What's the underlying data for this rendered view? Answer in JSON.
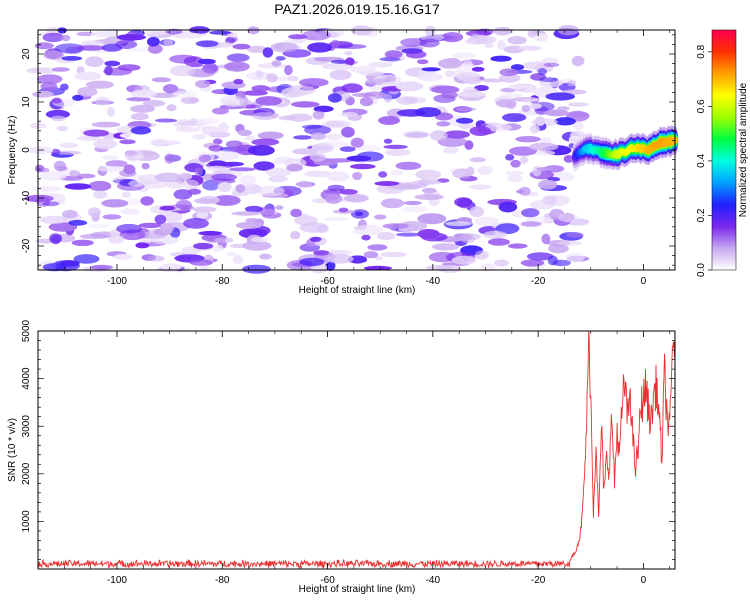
{
  "figure_title": "PAZ1.2026.019.15.16.G17",
  "chart_data": [
    {
      "type": "heatmap",
      "title": "PAZ1.2026.019.15.16.G17",
      "xlabel": "Height of straight line (km)",
      "ylabel": "Frequency (Hz)",
      "xlim": [
        -115,
        6
      ],
      "ylim": [
        -25,
        25
      ],
      "x_ticks": [
        -100,
        -80,
        -60,
        -40,
        -20,
        0
      ],
      "x_tick_labels": [
        "-100",
        "-80",
        "-60",
        "-40",
        "-20",
        "0"
      ],
      "y_ticks": [
        -20,
        -10,
        0,
        10,
        20
      ],
      "y_tick_labels": [
        "-20",
        "-10",
        "0",
        "10",
        "20"
      ],
      "colorbar": {
        "label": "Normalized spectral amplitude",
        "range": [
          0.0,
          0.88
        ],
        "ticks": [
          0.0,
          0.2,
          0.4,
          0.6,
          0.8
        ],
        "tick_labels": [
          "0.0",
          "0.2",
          "0.4",
          "0.6",
          "0.8"
        ],
        "colors": [
          "#ffffff",
          "#c8a8f0",
          "#7a28ee",
          "#2020ff",
          "#00a0ff",
          "#00ffe0",
          "#00ff40",
          "#a0ff00",
          "#ffff00",
          "#ffa000",
          "#ff3000",
          "#ff0050"
        ]
      },
      "noise_region": {
        "x_range": [
          -115,
          -12
        ],
        "freq_range": [
          -25,
          25
        ],
        "level_range": [
          0.02,
          0.22
        ]
      },
      "signal_trace": {
        "description_points": [
          {
            "x": -13,
            "freq": -1.5,
            "level": 0.2
          },
          {
            "x": -11,
            "freq": 0.5,
            "level": 0.35
          },
          {
            "x": -8,
            "freq": -0.5,
            "level": 0.45
          },
          {
            "x": -5,
            "freq": -1.0,
            "level": 0.6
          },
          {
            "x": -2,
            "freq": 0.5,
            "level": 0.65
          },
          {
            "x": 1,
            "freq": 0.0,
            "level": 0.7
          },
          {
            "x": 3,
            "freq": 1.5,
            "level": 0.72
          },
          {
            "x": 6,
            "freq": 2.0,
            "level": 0.7
          }
        ]
      },
      "grid": false
    },
    {
      "type": "line",
      "xlabel": "Height of straight line (km)",
      "ylabel": "SNR (10 * v/v)",
      "xlim": [
        -115,
        6
      ],
      "ylim": [
        0,
        5000
      ],
      "x_ticks": [
        -100,
        -80,
        -60,
        -40,
        -20,
        0
      ],
      "x_tick_labels": [
        "-100",
        "-80",
        "-60",
        "-40",
        "-20",
        "0"
      ],
      "y_ticks": [
        1000,
        2000,
        3000,
        4000,
        5000
      ],
      "y_tick_labels": [
        "1000",
        "2000",
        "3000",
        "4000",
        "5000"
      ],
      "line_color": "#e83030",
      "noise_floor": {
        "x_range": [
          -115,
          -14
        ],
        "mean": 110,
        "spread": 90
      },
      "series": [
        {
          "name": "SNR",
          "x": [
            -14,
            -13,
            -12,
            -11.5,
            -11,
            -10.7,
            -10.3,
            -10,
            -9.5,
            -9,
            -8.5,
            -8,
            -7.5,
            -7,
            -6.5,
            -6,
            -5.5,
            -5,
            -4.5,
            -4,
            -3.5,
            -3,
            -2.5,
            -2,
            -1.5,
            -1,
            -0.5,
            0,
            0.5,
            1,
            1.5,
            2,
            2.5,
            3,
            3.5,
            4,
            4.5,
            5,
            5.5,
            6
          ],
          "y": [
            180,
            350,
            700,
            1300,
            2400,
            3400,
            5000,
            3600,
            1200,
            2700,
            1000,
            3000,
            1600,
            2300,
            2100,
            3200,
            1800,
            2900,
            2400,
            3500,
            3900,
            3100,
            3800,
            2700,
            2100,
            2500,
            3400,
            3600,
            3800,
            3300,
            3100,
            3700,
            3850,
            3200,
            2300,
            4100,
            3200,
            2900,
            4500,
            4950
          ]
        }
      ],
      "grid": false
    }
  ]
}
